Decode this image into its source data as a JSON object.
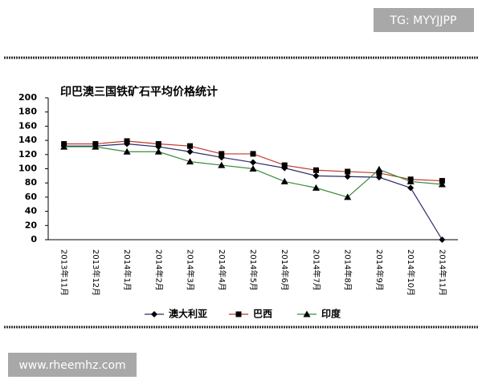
{
  "watermark": "TG: MYYJJPP",
  "footer": "www.rheemhz.com",
  "chart_data": {
    "type": "line",
    "title": "印巴澳三国铁矿石平均价格统计",
    "categories": [
      "2013年11月",
      "2013年12月",
      "2014年1月",
      "2014年2月",
      "2014年3月",
      "2014年4月",
      "2014年5月",
      "2014年6月",
      "2014年7月",
      "2014年8月",
      "2014年9月",
      "2014年10月",
      "2014年11月"
    ],
    "series": [
      {
        "name": "澳大利亚",
        "color": "#2a2a6a",
        "marker": "diamond",
        "marker_color": "#000000",
        "values": [
          132,
          132,
          135,
          131,
          124,
          116,
          109,
          101,
          90,
          89,
          88,
          73,
          0
        ]
      },
      {
        "name": "巴西",
        "color": "#c0392b",
        "marker": "square",
        "marker_color": "#000000",
        "values": [
          135,
          135,
          139,
          135,
          132,
          121,
          121,
          105,
          98,
          96,
          94,
          85,
          83
        ]
      },
      {
        "name": "印度",
        "color": "#3a8a3a",
        "marker": "triangle",
        "marker_color": "#000000",
        "values": [
          131,
          131,
          124,
          124,
          110,
          105,
          100,
          82,
          73,
          60,
          99,
          82,
          78
        ]
      }
    ],
    "ylim": [
      0,
      200
    ],
    "yticks": [
      0,
      20,
      40,
      60,
      80,
      100,
      120,
      140,
      160,
      180,
      200
    ],
    "grid": false,
    "legend": "bottom"
  }
}
